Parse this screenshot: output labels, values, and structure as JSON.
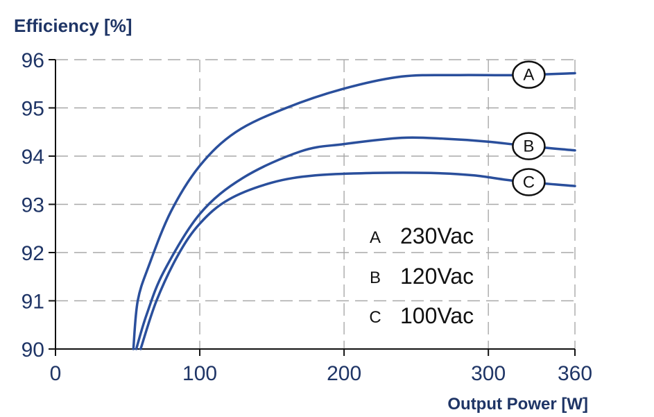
{
  "chart_data": {
    "type": "line",
    "title": "",
    "ylabel": "Efficiency [%]",
    "xlabel": "Output Power [W]",
    "xlim": [
      0,
      360
    ],
    "ylim": [
      90,
      96
    ],
    "x_ticks": [
      0,
      100,
      200,
      300,
      360
    ],
    "y_ticks": [
      90,
      91,
      92,
      93,
      94,
      95,
      96
    ],
    "grid": true,
    "series_color": "#2a4f9c",
    "series": [
      {
        "marker": "A",
        "legend_label": "230Vac",
        "points": [
          [
            54,
            90
          ],
          [
            57,
            91
          ],
          [
            65,
            91.75
          ],
          [
            80,
            92.85
          ],
          [
            100,
            93.8
          ],
          [
            125,
            94.5
          ],
          [
            160,
            95.0
          ],
          [
            200,
            95.4
          ],
          [
            240,
            95.65
          ],
          [
            280,
            95.68
          ],
          [
            320,
            95.68
          ],
          [
            360,
            95.72
          ]
        ]
      },
      {
        "marker": "B",
        "legend_label": "120Vac",
        "points": [
          [
            56,
            90
          ],
          [
            63,
            90.7
          ],
          [
            75,
            91.6
          ],
          [
            100,
            92.8
          ],
          [
            130,
            93.55
          ],
          [
            170,
            94.1
          ],
          [
            200,
            94.25
          ],
          [
            240,
            94.38
          ],
          [
            270,
            94.36
          ],
          [
            300,
            94.3
          ],
          [
            330,
            94.2
          ],
          [
            360,
            94.12
          ]
        ]
      },
      {
        "marker": "C",
        "legend_label": "100Vac",
        "points": [
          [
            59,
            90
          ],
          [
            70,
            91
          ],
          [
            85,
            91.95
          ],
          [
            100,
            92.6
          ],
          [
            120,
            93.1
          ],
          [
            150,
            93.45
          ],
          [
            180,
            93.6
          ],
          [
            220,
            93.65
          ],
          [
            260,
            93.65
          ],
          [
            290,
            93.6
          ],
          [
            320,
            93.48
          ],
          [
            360,
            93.38
          ]
        ]
      }
    ]
  }
}
